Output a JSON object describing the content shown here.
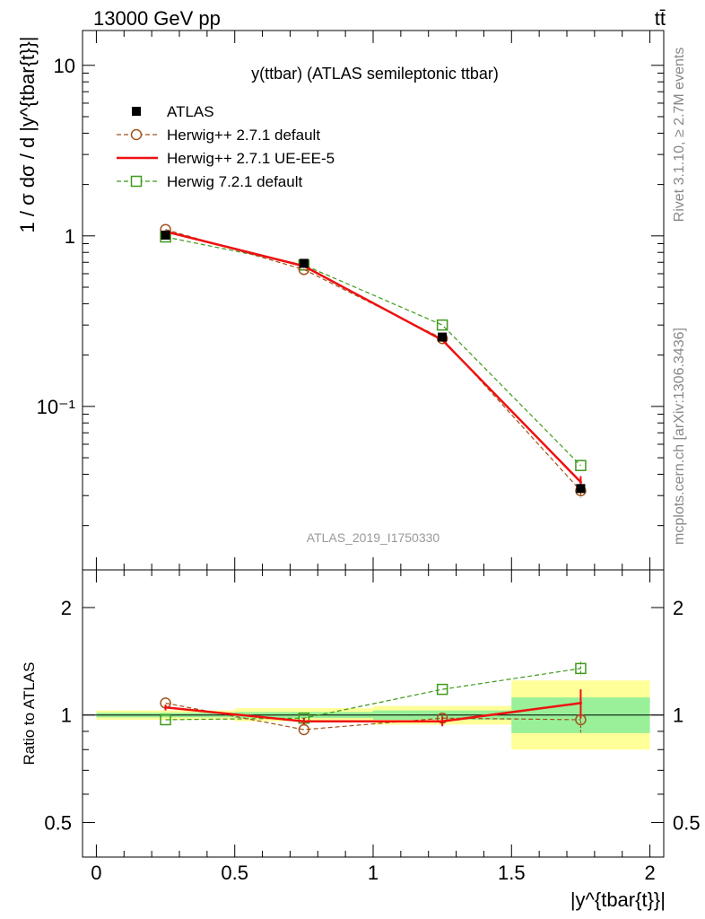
{
  "header": {
    "left_label": "13000 GeV pp",
    "right_label": "tt̄"
  },
  "side_labels": {
    "rivet": "Rivet 3.1.10, ≥ 2.7M events",
    "mcplots": "mcplots.cern.ch [arXiv:1306.3436]"
  },
  "chart_data": [
    {
      "type": "line",
      "title": "y(ttbar) (ATLAS semileptonic ttbar)",
      "watermark": "ATLAS_2019_I1750330",
      "ylabel": "1 / σ dσ / d |y^{tbar{t}}|",
      "yscale": "log",
      "ylim": [
        0.011,
        16
      ],
      "xlim": [
        -0.05,
        2.05
      ],
      "ytick_labels": [
        "10",
        "1",
        "10⁻¹"
      ],
      "ytick_values": [
        10,
        1,
        0.1
      ],
      "legend_position": "top-left",
      "x": [
        0.25,
        0.75,
        1.25,
        1.75
      ],
      "x_bin_edges": [
        0,
        0.5,
        1.0,
        1.5,
        2.0
      ],
      "series": [
        {
          "name": "ATLAS",
          "style": "marker-square-filled",
          "color": "#000000",
          "values": [
            1.01,
            0.69,
            0.255,
            0.033
          ],
          "errors": [
            0.015,
            0.01,
            0.005,
            0.002
          ]
        },
        {
          "name": "Herwig++ 2.7.1 default",
          "style": "dashed-open-circle",
          "color": "#a0541c",
          "values": [
            1.09,
            0.635,
            0.25,
            0.032
          ],
          "errors": [
            0.0,
            0.0,
            0.0,
            0.003
          ]
        },
        {
          "name": "Herwig++ 2.7.1 UE-EE-5",
          "style": "solid",
          "color": "#ee1111",
          "values": [
            1.06,
            0.665,
            0.245,
            0.036
          ],
          "errors": [
            0.0,
            0.0,
            0.0,
            0.003
          ]
        },
        {
          "name": "Herwig 7.2.1 default",
          "style": "dashed-open-square",
          "color": "#3f9a1a",
          "values": [
            0.985,
            0.675,
            0.3,
            0.045
          ],
          "errors": [
            0.0,
            0.0,
            0.0,
            0.0
          ]
        }
      ]
    },
    {
      "type": "line",
      "ylabel": "Ratio to ATLAS",
      "xlabel": "|y^{tbar{t}}|",
      "yscale": "log",
      "ylim": [
        0.4,
        2.55
      ],
      "xlim": [
        -0.05,
        2.05
      ],
      "ytick_labels": [
        "2",
        "1",
        "0.5"
      ],
      "ytick_values": [
        2,
        1,
        0.5
      ],
      "xtick_labels": [
        "0",
        "0.5",
        "1",
        "1.5",
        "2"
      ],
      "xtick_values": [
        0,
        0.5,
        1,
        1.5,
        2
      ],
      "x": [
        0.25,
        0.75,
        1.25,
        1.75
      ],
      "x_bin_edges": [
        0,
        0.5,
        1.0,
        1.5,
        2.0
      ],
      "band_inner": [
        [
          0.985,
          1.015
        ],
        [
          0.98,
          1.02
        ],
        [
          0.97,
          1.03
        ],
        [
          0.89,
          1.12
        ]
      ],
      "band_outer": [
        [
          0.97,
          1.03
        ],
        [
          0.96,
          1.045
        ],
        [
          0.94,
          1.06
        ],
        [
          0.8,
          1.25
        ]
      ],
      "series": [
        {
          "name": "Herwig++ 2.7.1 default",
          "style": "dashed-open-circle",
          "color": "#a0541c",
          "values": [
            1.08,
            0.91,
            0.98,
            0.97
          ],
          "errors": [
            0.0,
            0.0,
            0.02,
            0.08
          ]
        },
        {
          "name": "Herwig++ 2.7.1 UE-EE-5",
          "style": "solid",
          "color": "#ee1111",
          "values": [
            1.05,
            0.96,
            0.96,
            1.08
          ],
          "errors": [
            0.02,
            0.02,
            0.03,
            0.1
          ]
        },
        {
          "name": "Herwig 7.2.1 default",
          "style": "dashed-open-square",
          "color": "#3f9a1a",
          "values": [
            0.97,
            0.98,
            1.18,
            1.35
          ],
          "errors": [
            0.0,
            0.0,
            0.0,
            0.06
          ]
        }
      ]
    }
  ]
}
